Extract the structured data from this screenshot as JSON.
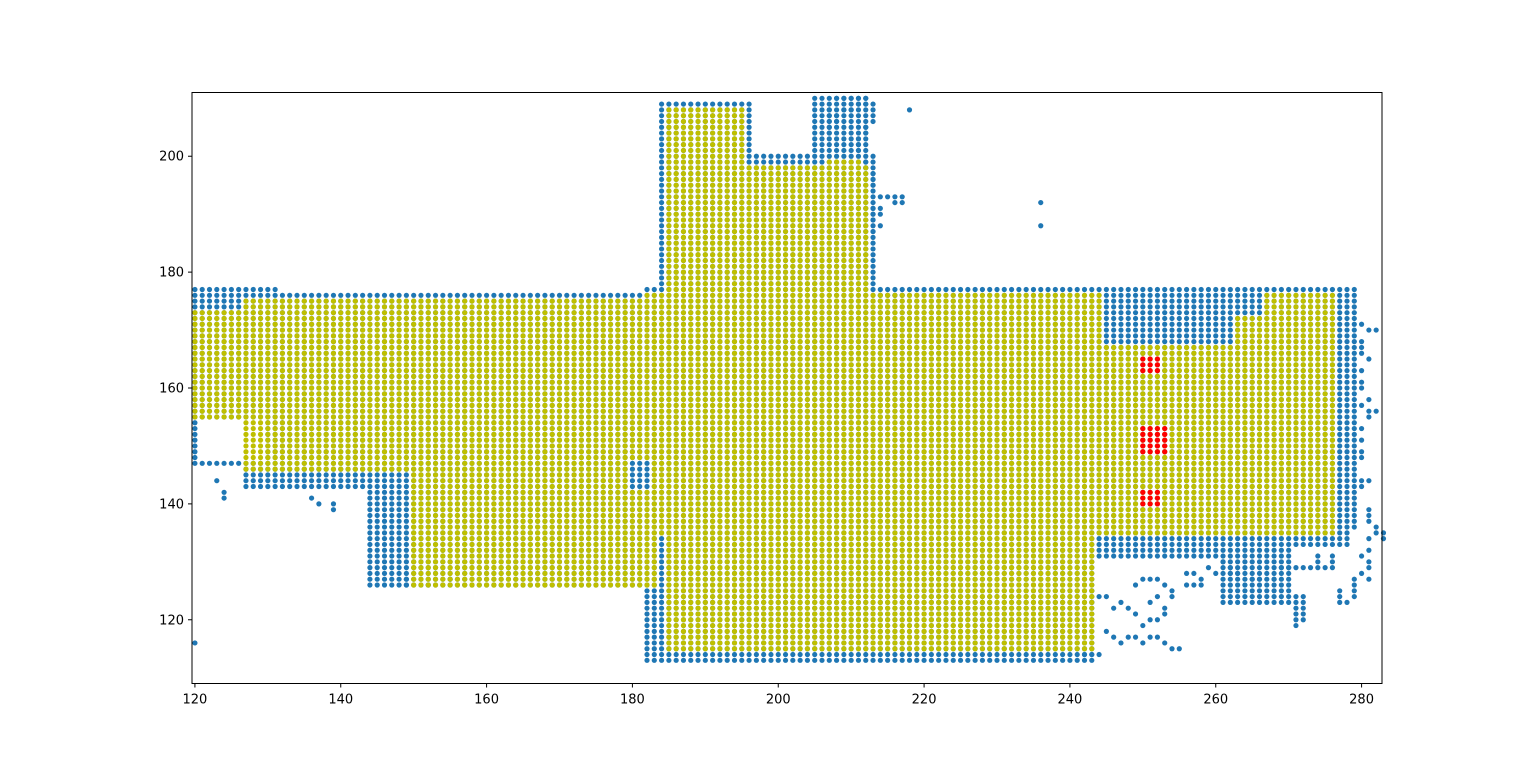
{
  "chart_data": {
    "type": "scatter",
    "title": "",
    "xlabel": "",
    "ylabel": "",
    "xlim": [
      119.6,
      282.8
    ],
    "ylim": [
      109,
      211
    ],
    "xticks": [
      120,
      140,
      160,
      180,
      200,
      220,
      240,
      260,
      280
    ],
    "yticks": [
      120,
      140,
      160,
      180,
      200
    ],
    "grid": false,
    "legend": "none",
    "colors": {
      "outer": "#1f77b4",
      "inner": "#bfbf00",
      "marked": "#ff0000"
    },
    "series": [
      {
        "color": "#1f77b4",
        "fill_regions": [
          {
            "x": [
              120,
              131
            ],
            "y": [
              147,
              177
            ]
          },
          {
            "x": [
              127,
              183
            ],
            "y": [
              143,
              176
            ]
          },
          {
            "x": [
              144,
              183
            ],
            "y": [
              126,
              160
            ]
          },
          {
            "x": [
              184,
              196
            ],
            "y": [
              176,
              209
            ]
          },
          {
            "x": [
              196,
              213
            ],
            "y": [
              176,
              200
            ]
          },
          {
            "x": [
              205,
              212
            ],
            "y": [
              200,
              210
            ]
          },
          {
            "x": [
              182,
              244
            ],
            "y": [
              113,
              134
            ]
          },
          {
            "x": [
              182,
              278
            ],
            "y": [
              133,
              177
            ]
          },
          {
            "x": [
              240,
              270
            ],
            "y": [
              115,
              138
            ]
          },
          {
            "x": [
              276,
              279
            ],
            "y": [
              136,
              177
            ]
          }
        ],
        "holes": [
          {
            "x": [
              121,
              129
            ],
            "y": [
              148,
              154
            ]
          },
          {
            "x": [
              131,
              143
            ],
            "y": [
              126,
              142
            ]
          },
          {
            "x": [
              244,
              260
            ],
            "y": [
              112,
              130
            ]
          },
          {
            "x": [
              260,
              280
            ],
            "y": [
              112,
              122
            ]
          }
        ],
        "extra_points": [
          [
            120,
            116
          ],
          [
            124,
            141
          ],
          [
            124,
            142
          ],
          [
            123,
            144
          ],
          [
            139,
            139
          ],
          [
            139,
            140
          ],
          [
            137,
            140
          ],
          [
            136,
            141
          ],
          [
            149,
            126
          ],
          [
            149,
            127
          ],
          [
            152,
            126
          ],
          [
            155,
            127
          ],
          [
            218,
            208
          ],
          [
            236,
            192
          ],
          [
            236,
            188
          ],
          [
            214,
            193
          ],
          [
            215,
            193
          ],
          [
            216,
            192
          ],
          [
            216,
            193
          ],
          [
            217,
            192
          ],
          [
            217,
            193
          ],
          [
            216,
            167
          ],
          [
            217,
            167
          ],
          [
            213,
            189
          ],
          [
            213,
            190
          ],
          [
            213,
            191
          ],
          [
            214,
            190
          ],
          [
            214,
            191
          ],
          [
            214,
            188
          ],
          [
            213,
            187
          ],
          [
            211,
            201
          ],
          [
            211,
            202
          ],
          [
            211,
            203
          ],
          [
            212,
            199
          ],
          [
            212,
            198
          ],
          [
            213,
            197
          ],
          [
            213,
            196
          ],
          [
            213,
            195
          ],
          [
            207,
            204
          ],
          [
            207,
            205
          ],
          [
            207,
            206
          ],
          [
            207,
            207
          ],
          [
            207,
            208
          ],
          [
            208,
            206
          ],
          [
            208,
            207
          ],
          [
            208,
            210
          ],
          [
            209,
            210
          ],
          [
            210,
            210
          ],
          [
            211,
            210
          ],
          [
            212,
            210
          ],
          [
            212,
            209
          ],
          [
            213,
            209
          ],
          [
            213,
            208
          ],
          [
            213,
            207
          ],
          [
            213,
            206
          ],
          [
            212,
            205
          ],
          [
            212,
            204
          ],
          [
            211,
            209
          ],
          [
            210,
            208
          ],
          [
            209,
            208
          ],
          [
            214,
            176
          ],
          [
            215,
            176
          ],
          [
            216,
            176
          ],
          [
            217,
            176
          ],
          [
            199,
            170
          ],
          [
            201,
            168
          ],
          [
            202,
            167
          ],
          [
            204,
            167
          ],
          [
            200,
            167
          ],
          [
            199,
            168
          ],
          [
            281,
            170
          ],
          [
            282,
            170
          ],
          [
            280,
            171
          ],
          [
            280,
            168
          ],
          [
            280,
            167
          ],
          [
            280,
            166
          ],
          [
            281,
            165
          ],
          [
            280,
            163
          ],
          [
            280,
            161
          ],
          [
            280,
            160
          ],
          [
            281,
            158
          ],
          [
            280,
            157
          ],
          [
            281,
            156
          ],
          [
            282,
            156
          ],
          [
            281,
            155
          ],
          [
            280,
            153
          ],
          [
            280,
            151
          ],
          [
            280,
            149
          ],
          [
            280,
            148
          ],
          [
            281,
            144
          ],
          [
            280,
            144
          ],
          [
            280,
            143
          ],
          [
            281,
            139
          ],
          [
            281,
            138
          ],
          [
            281,
            137
          ],
          [
            282,
            136
          ],
          [
            282,
            135
          ],
          [
            283,
            135
          ],
          [
            283,
            134
          ],
          [
            281,
            134
          ],
          [
            281,
            132
          ],
          [
            280,
            131
          ],
          [
            281,
            130
          ],
          [
            281,
            129
          ],
          [
            280,
            128
          ],
          [
            281,
            127
          ],
          [
            279,
            127
          ],
          [
            279,
            126
          ],
          [
            279,
            125
          ],
          [
            279,
            124
          ],
          [
            278,
            123
          ],
          [
            277,
            123
          ],
          [
            277,
            124
          ],
          [
            277,
            125
          ],
          [
            271,
            119
          ],
          [
            271,
            120
          ],
          [
            271,
            121
          ],
          [
            271,
            122
          ],
          [
            271,
            123
          ],
          [
            271,
            124
          ],
          [
            272,
            120
          ],
          [
            272,
            121
          ],
          [
            272,
            122
          ],
          [
            272,
            123
          ],
          [
            272,
            124
          ],
          [
            268,
            127
          ],
          [
            269,
            129
          ],
          [
            270,
            129
          ],
          [
            271,
            129
          ],
          [
            272,
            129
          ],
          [
            273,
            129
          ],
          [
            274,
            129
          ],
          [
            274,
            130
          ],
          [
            274,
            131
          ],
          [
            275,
            129
          ],
          [
            276,
            129
          ],
          [
            276,
            130
          ],
          [
            276,
            131
          ],
          [
            266,
            127
          ],
          [
            265,
            127
          ],
          [
            263,
            128
          ],
          [
            262,
            128
          ],
          [
            262,
            129
          ],
          [
            261,
            130
          ],
          [
            260,
            128
          ],
          [
            259,
            129
          ],
          [
            258,
            127
          ],
          [
            258,
            126
          ],
          [
            257,
            126
          ],
          [
            256,
            126
          ],
          [
            256,
            128
          ],
          [
            257,
            128
          ],
          [
            254,
            115
          ],
          [
            255,
            115
          ],
          [
            253,
            116
          ],
          [
            252,
            117
          ],
          [
            251,
            117
          ],
          [
            250,
            116
          ],
          [
            249,
            117
          ],
          [
            248,
            117
          ],
          [
            247,
            116
          ],
          [
            246,
            117
          ],
          [
            245,
            118
          ],
          [
            250,
            119
          ],
          [
            251,
            120
          ],
          [
            252,
            120
          ],
          [
            253,
            121
          ],
          [
            253,
            122
          ],
          [
            254,
            124
          ],
          [
            254,
            125
          ],
          [
            252,
            124
          ],
          [
            251,
            123
          ],
          [
            249,
            121
          ],
          [
            248,
            122
          ],
          [
            247,
            123
          ],
          [
            246,
            122
          ],
          [
            245,
            124
          ],
          [
            244,
            124
          ],
          [
            243,
            125
          ],
          [
            243,
            123
          ],
          [
            242,
            114
          ],
          [
            243,
            114
          ],
          [
            244,
            114
          ],
          [
            249,
            126
          ],
          [
            250,
            127
          ],
          [
            251,
            127
          ],
          [
            252,
            127
          ],
          [
            253,
            126
          ]
        ]
      },
      {
        "color": "#bfbf00",
        "fill_regions": [
          {
            "x": [
              120,
              130
            ],
            "y": [
              155,
              173
            ]
          },
          {
            "x": [
              127,
              183
            ],
            "y": [
              146,
              175
            ]
          },
          {
            "x": [
              150,
              183
            ],
            "y": [
              126,
              158
            ]
          },
          {
            "x": [
              185,
              195
            ],
            "y": [
              176,
              208
            ]
          },
          {
            "x": [
              196,
              212
            ],
            "y": [
              176,
              198
            ]
          },
          {
            "x": [
              207,
              211
            ],
            "y": [
              197,
              199
            ]
          },
          {
            "x": [
              185,
              243
            ],
            "y": [
              115,
              134
            ]
          },
          {
            "x": [
              182,
              276
            ],
            "y": [
              135,
              176
            ]
          }
        ],
        "holes": [
          {
            "x": [
              180,
              182
            ],
            "y": [
              143,
              147
            ]
          },
          {
            "x": [
              245,
              262
            ],
            "y": [
              168,
              177
            ]
          },
          {
            "x": [
              262,
              266
            ],
            "y": [
              173,
              177
            ]
          }
        ],
        "extra_points": []
      },
      {
        "color": "#ff0000",
        "points": [
          [
            250,
            163
          ],
          [
            251,
            163
          ],
          [
            252,
            163
          ],
          [
            250,
            164
          ],
          [
            251,
            164
          ],
          [
            252,
            164
          ],
          [
            250,
            165
          ],
          [
            251,
            165
          ],
          [
            252,
            165
          ],
          [
            250,
            149
          ],
          [
            251,
            149
          ],
          [
            252,
            149
          ],
          [
            253,
            149
          ],
          [
            250,
            150
          ],
          [
            251,
            150
          ],
          [
            252,
            150
          ],
          [
            253,
            150
          ],
          [
            250,
            151
          ],
          [
            251,
            151
          ],
          [
            252,
            151
          ],
          [
            253,
            151
          ],
          [
            250,
            152
          ],
          [
            251,
            152
          ],
          [
            252,
            152
          ],
          [
            253,
            152
          ],
          [
            250,
            153
          ],
          [
            251,
            153
          ],
          [
            252,
            153
          ],
          [
            253,
            153
          ],
          [
            250,
            140
          ],
          [
            251,
            140
          ],
          [
            252,
            140
          ],
          [
            250,
            141
          ],
          [
            251,
            141
          ],
          [
            252,
            141
          ],
          [
            250,
            142
          ],
          [
            251,
            142
          ],
          [
            252,
            142
          ]
        ]
      }
    ]
  }
}
